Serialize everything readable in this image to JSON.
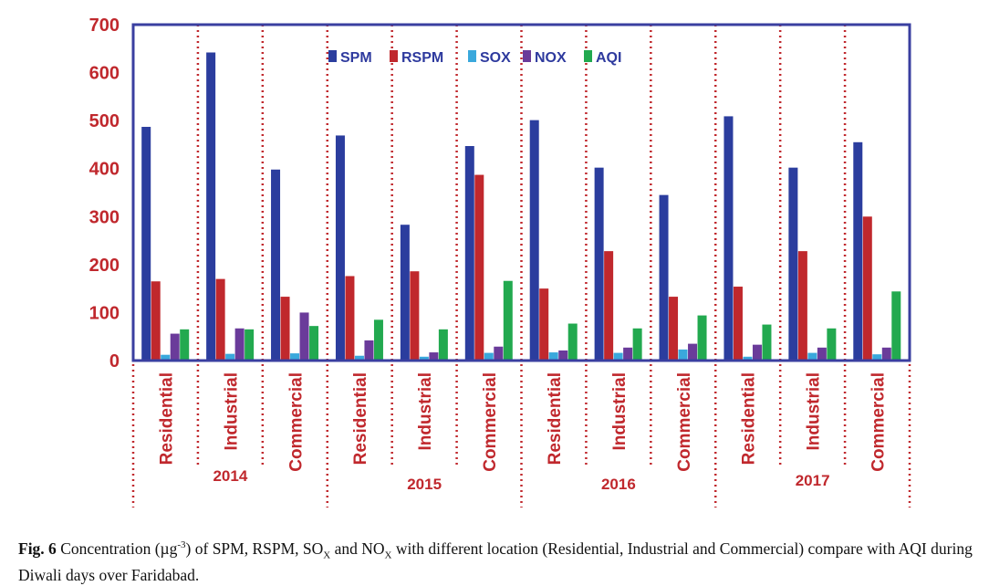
{
  "chart_data": {
    "type": "bar",
    "title": "",
    "xlabel": "",
    "ylabel": "",
    "ylim": [
      0,
      700
    ],
    "yticks": [
      "0",
      "100",
      "200",
      "300",
      "400",
      "500",
      "600",
      "700"
    ],
    "groups": [
      "2014",
      "2015",
      "2016",
      "2017"
    ],
    "categories": [
      "Residential",
      "Industrial",
      "Commercial",
      "Residential",
      "Industrial",
      "Commercial",
      "Residential",
      "Industrial",
      "Commercial",
      "Residential",
      "Industrial",
      "Commercial"
    ],
    "series": [
      {
        "name": "SPM",
        "color": "#2b3d9e",
        "values": [
          487,
          642,
          398,
          469,
          283,
          447,
          501,
          402,
          345,
          509,
          402,
          455
        ]
      },
      {
        "name": "RSPM",
        "color": "#c0282d",
        "values": [
          165,
          170,
          133,
          176,
          186,
          387,
          150,
          228,
          133,
          154,
          228,
          300
        ]
      },
      {
        "name": "SOX",
        "color": "#3aa8dc",
        "values": [
          12,
          14,
          15,
          10,
          8,
          16,
          17,
          16,
          23,
          8,
          16,
          13
        ]
      },
      {
        "name": "NOX",
        "color": "#6a3b9a",
        "values": [
          56,
          67,
          100,
          42,
          17,
          29,
          21,
          27,
          35,
          33,
          27,
          27
        ]
      },
      {
        "name": "AQI",
        "color": "#22a94f",
        "values": [
          65,
          65,
          72,
          85,
          65,
          166,
          77,
          67,
          94,
          75,
          67,
          144
        ]
      }
    ],
    "legend": "top-center"
  },
  "caption": {
    "label": "Fig. 6",
    "text_a": "Concentration (µg",
    "sup": "-3",
    "text_b": ") of SPM, RSPM, SO",
    "sub1": "X",
    "text_c": " and NO",
    "sub2": "X",
    "text_d": " with different location (Residential, Industrial and Commercial) compare with AQI during Diwali days over Faridabad."
  }
}
